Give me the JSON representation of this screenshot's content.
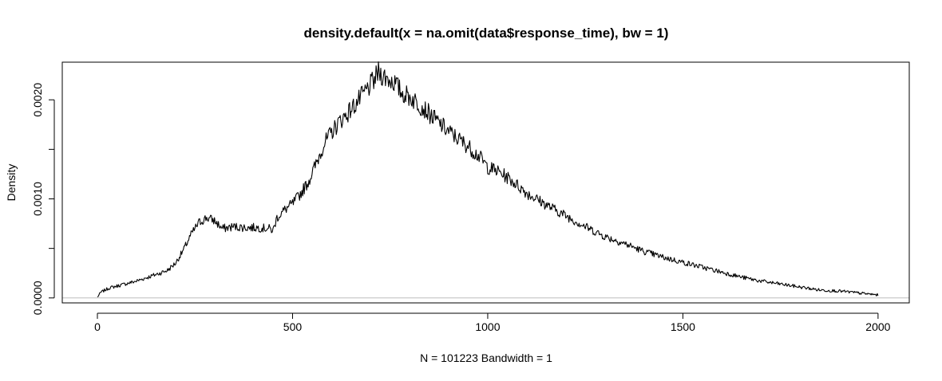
{
  "chart_data": {
    "type": "line",
    "title": "density.default(x = na.omit(data$response_time), bw = 1)",
    "xlabel": "N = 101223   Bandwidth = 1",
    "ylabel": "Density",
    "xlim": [
      -90,
      2080
    ],
    "ylim": [
      -5e-05,
      0.00238
    ],
    "x_ticks": [
      0,
      500,
      1000,
      1500,
      2000
    ],
    "x_tick_labels": [
      "0",
      "500",
      "1000",
      "1500",
      "2000"
    ],
    "y_ticks": [
      0,
      0.0005,
      0.001,
      0.0015,
      0.002
    ],
    "y_tick_labels": [
      "0.0000",
      "",
      "0.0010",
      "",
      "0.0020"
    ],
    "baseline": 0,
    "baseline_color": "#bebebe",
    "line_color": "#000000",
    "series": [
      {
        "x": [
          0,
          10,
          30,
          60,
          100,
          130,
          160,
          180,
          200,
          220,
          240,
          260,
          280,
          300,
          320,
          350,
          380,
          410,
          440,
          450,
          460,
          480,
          500,
          520,
          540,
          560,
          580,
          600,
          620,
          640,
          660,
          680,
          700,
          710,
          720,
          740,
          760,
          780,
          800,
          820,
          840,
          860,
          880,
          900,
          920,
          950,
          980,
          1000,
          1030,
          1060,
          1100,
          1150,
          1200,
          1250,
          1300,
          1350,
          1400,
          1450,
          1500,
          1550,
          1600,
          1650,
          1700,
          1750,
          1800,
          1850,
          1900,
          1950,
          2000
        ],
        "y": [
          1e-05,
          6e-05,
          0.0001,
          0.00013,
          0.00017,
          0.00021,
          0.00025,
          0.00028,
          0.00035,
          0.00048,
          0.00064,
          0.00076,
          0.00081,
          0.00078,
          0.0007,
          0.00072,
          0.00071,
          0.00071,
          0.0007,
          0.00068,
          0.00081,
          0.00089,
          0.00095,
          0.00105,
          0.00117,
          0.00135,
          0.00155,
          0.00167,
          0.00178,
          0.00186,
          0.00195,
          0.00205,
          0.00215,
          0.0022,
          0.00228,
          0.00222,
          0.00218,
          0.00207,
          0.00203,
          0.00197,
          0.0019,
          0.00182,
          0.00175,
          0.00168,
          0.00162,
          0.00153,
          0.00142,
          0.00132,
          0.00127,
          0.00119,
          0.00106,
          0.00094,
          0.00083,
          0.00072,
          0.00062,
          0.00055,
          0.00047,
          0.00041,
          0.00036,
          0.00031,
          0.00026,
          0.00021,
          0.00017,
          0.00014,
          0.00011,
          8e-05,
          7e-05,
          5e-05,
          3e-05
        ]
      }
    ]
  }
}
